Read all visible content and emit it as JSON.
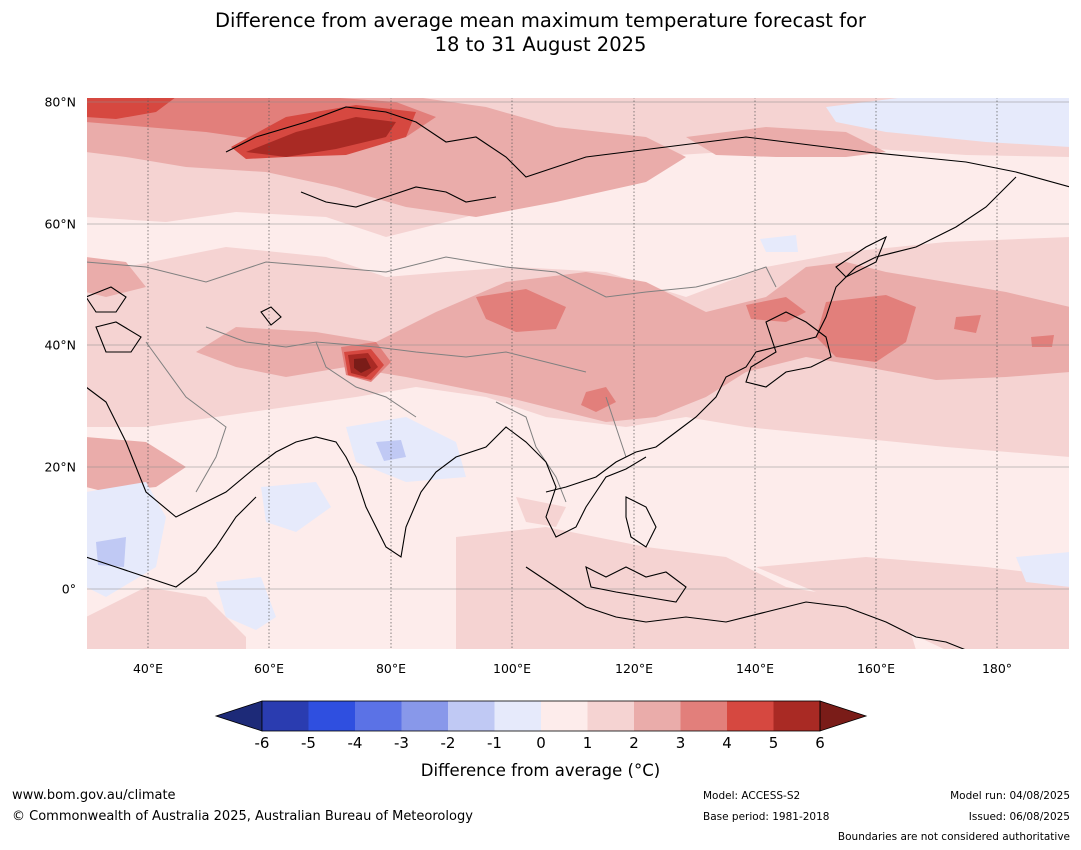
{
  "title": {
    "line1": "Difference from average mean maximum temperature forecast for",
    "line2": "18 to 31 August 2025"
  },
  "map": {
    "lat_labels": [
      "80°N",
      "60°N",
      "40°N",
      "20°N",
      "0°"
    ],
    "lon_labels": [
      "40°E",
      "60°E",
      "80°E",
      "100°E",
      "120°E",
      "140°E",
      "160°E",
      "180°"
    ],
    "colors": {
      "ocean_bg": "#fdeceb",
      "coast": "#000000",
      "border": "#808080"
    }
  },
  "colorbar": {
    "ticks": [
      "-6",
      "-5",
      "-4",
      "-3",
      "-2",
      "-1",
      "0",
      "1",
      "2",
      "3",
      "4",
      "5",
      "6"
    ],
    "colors": [
      "#1d2a78",
      "#2a3cb0",
      "#2f4fe0",
      "#5b72e6",
      "#8898ea",
      "#c0c9f4",
      "#e6eafb",
      "#fdeceb",
      "#f5d3d2",
      "#eaacaa",
      "#e27f7b",
      "#d64840",
      "#a92a24",
      "#7a1c18"
    ],
    "label": "Difference from average (°C)"
  },
  "footer": {
    "website": "www.bom.gov.au/climate",
    "copyright": "© Commonwealth of Australia 2025, Australian Bureau of Meteorology",
    "model": "Model: ACCESS-S2",
    "base_period": "Base period: 1981-2018",
    "model_run": "Model run: 04/08/2025",
    "issued": "Issued: 06/08/2025",
    "disclaimer": "Boundaries are not considered authoritative"
  }
}
